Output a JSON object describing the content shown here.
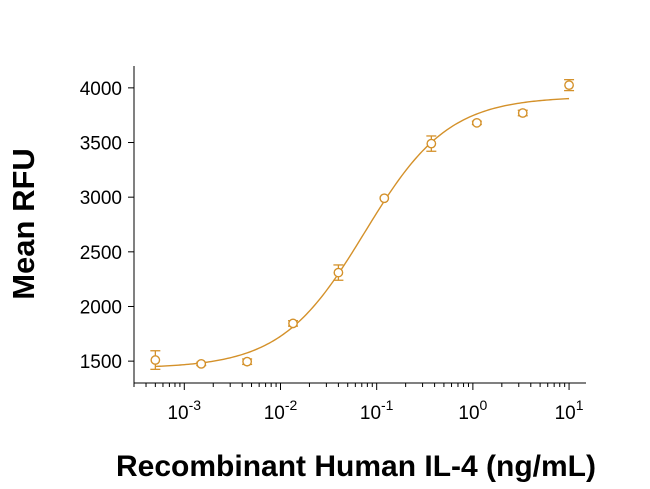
{
  "chart_data": {
    "type": "scatter",
    "xlabel": "Recombinant Human IL-4 (ng/mL)",
    "ylabel": "Mean RFU",
    "x_scale": "log",
    "xlim": [
      0.0003,
      15
    ],
    "ylim": [
      1300,
      4200
    ],
    "x_ticks": [
      {
        "value": 0.001,
        "base": "10",
        "exp": "-3"
      },
      {
        "value": 0.01,
        "base": "10",
        "exp": "-2"
      },
      {
        "value": 0.1,
        "base": "10",
        "exp": "-1"
      },
      {
        "value": 1,
        "base": "10",
        "exp": "0"
      },
      {
        "value": 10,
        "base": "10",
        "exp": "1"
      }
    ],
    "y_ticks": [
      1500,
      2000,
      2500,
      3000,
      3500,
      4000
    ],
    "color": "#D4912A",
    "grid": false,
    "series": [
      {
        "points": [
          {
            "x": 0.0005,
            "y": 1510,
            "err": 85
          },
          {
            "x": 0.0015,
            "y": 1475,
            "err": 15
          },
          {
            "x": 0.0045,
            "y": 1495,
            "err": 25
          },
          {
            "x": 0.0135,
            "y": 1845,
            "err": 25
          },
          {
            "x": 0.04,
            "y": 2310,
            "err": 70
          },
          {
            "x": 0.12,
            "y": 2990,
            "err": 0
          },
          {
            "x": 0.37,
            "y": 3490,
            "err": 70
          },
          {
            "x": 1.1,
            "y": 3680,
            "err": 15
          },
          {
            "x": 3.3,
            "y": 3770,
            "err": 25
          },
          {
            "x": 10,
            "y": 4025,
            "err": 50
          }
        ],
        "fit": {
          "bottom": 1435,
          "top": 3920,
          "ec50": 0.075,
          "hill": 1.0
        }
      }
    ]
  }
}
